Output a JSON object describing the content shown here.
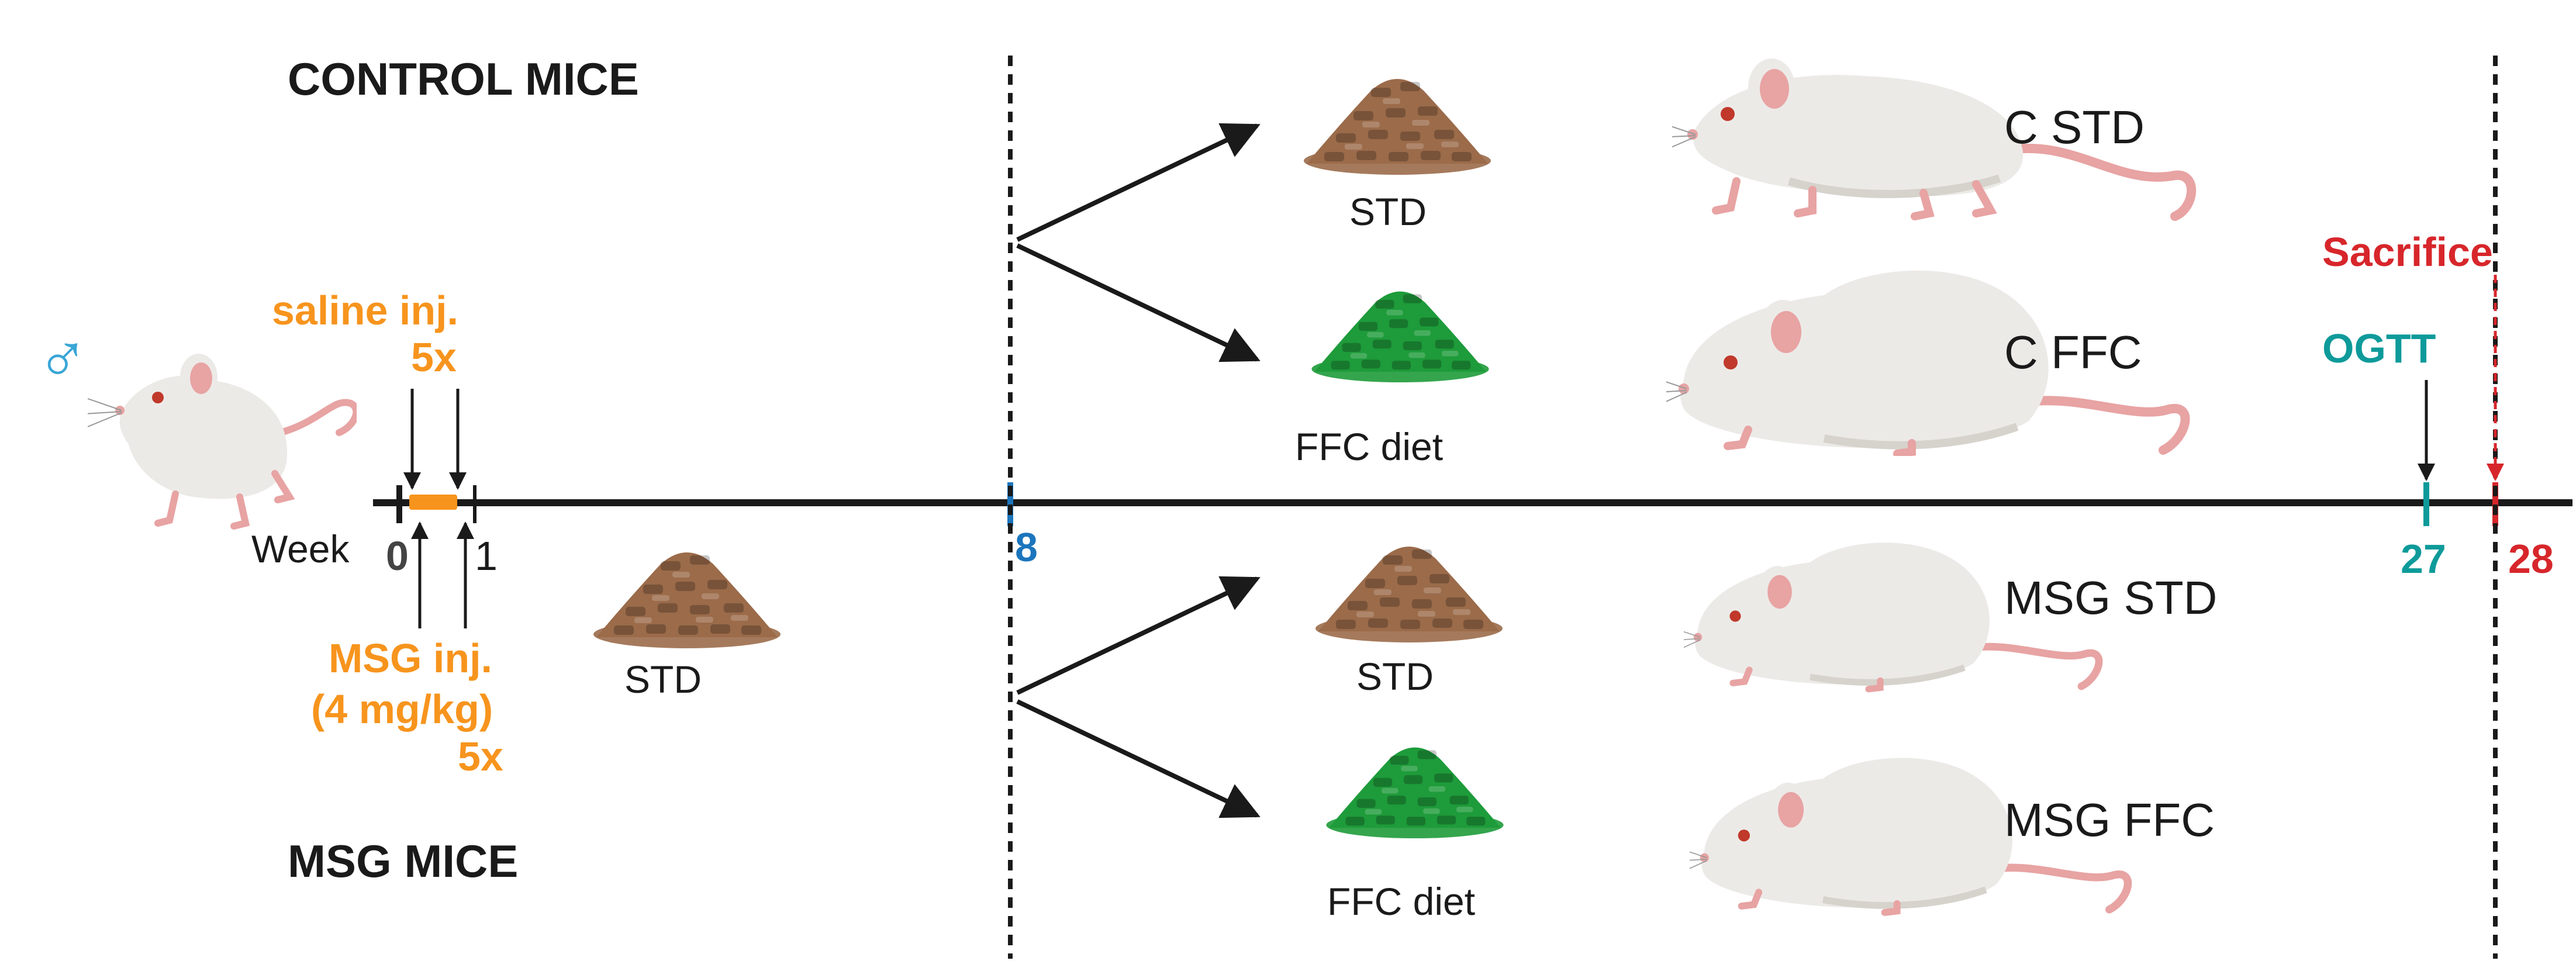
{
  "groups": {
    "control": "CONTROL MICE",
    "msg": "MSG MICE"
  },
  "timeline": {
    "week_label": "Week",
    "ticks": [
      "0",
      "1",
      "8",
      "27",
      "28"
    ]
  },
  "injections": {
    "saline_line1": "saline inj.",
    "saline_line2": "5x",
    "msg_line1": "MSG inj.",
    "msg_line2": "(4 mg/kg)",
    "msg_line3": "5x"
  },
  "diets": {
    "initial": "STD",
    "control_std": "STD",
    "control_ffc": "FFC diet",
    "msg_std": "STD",
    "msg_ffc": "FFC diet"
  },
  "outcomes": {
    "c_std": "C STD",
    "c_ffc": "C FFC",
    "msg_std": "MSG STD",
    "msg_ffc": "MSG FFC"
  },
  "events": {
    "ogtt": "OGTT",
    "sacrifice": "Sacrifice"
  },
  "symbols": {
    "male": "♂"
  },
  "colors": {
    "orange": "#F7941D",
    "blue": "#1B75BC",
    "teal": "#0E9A9A",
    "red": "#D7262B",
    "line": "#1a1a1a",
    "text": "#1a1a1a",
    "male": "#3AA6D6",
    "std_pellet": "#9B6B4A",
    "ffc_pellet": "#1E9B3A",
    "mouse_body": "#ECEAE7",
    "mouse_shade": "#D6D2CC",
    "mouse_pink": "#E8A3A3"
  }
}
